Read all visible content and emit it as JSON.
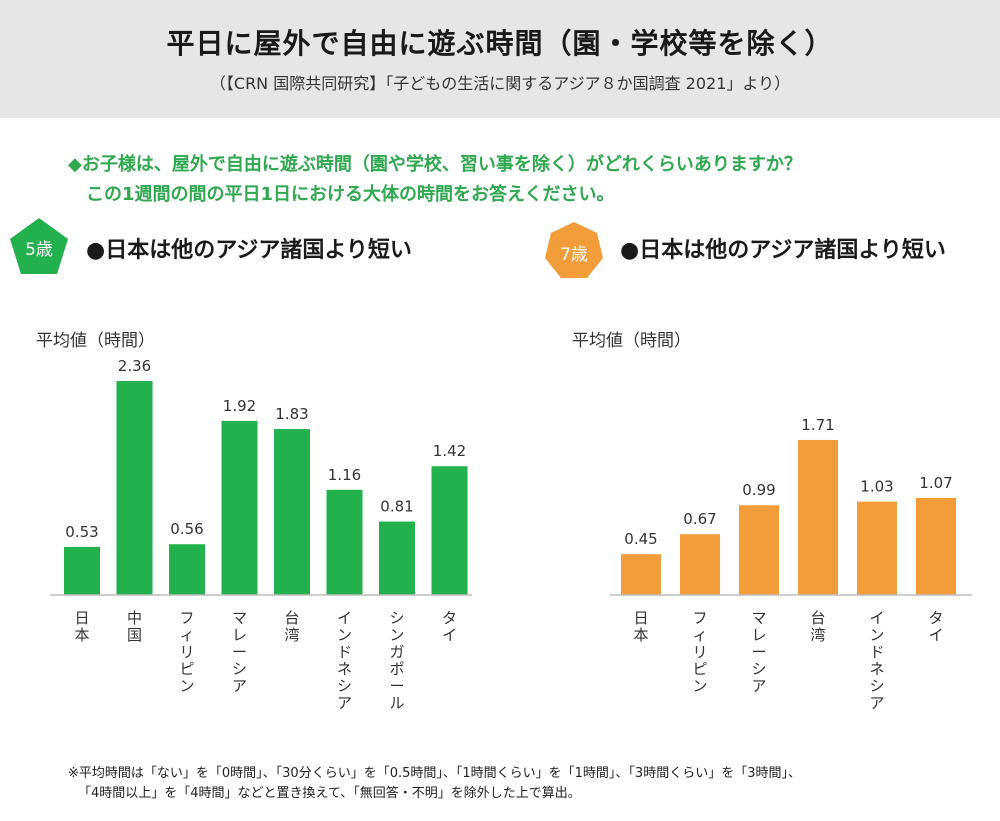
{
  "header": {
    "title": "平日に屋外で自由に遊ぶ時間（園・学校等を除く）",
    "subtitle": "（【CRN 国際共同研究】「子どもの生活に関するアジア８か国調査 2021」より）"
  },
  "question": {
    "line1": "◆お子様は、屋外で自由に遊ぶ時間（園や学校、習い事を除く）がどれくらいありますか？",
    "line2": "この1週間の間の平日1日における大体の時間をお答えください。"
  },
  "colors": {
    "green": "#22b14c",
    "orange": "#f39c3a",
    "question": "#2fa84f"
  },
  "chart_data": [
    {
      "type": "bar",
      "badge": "5歳",
      "headline": "●日本は他のアジア諸国より短い",
      "ylabel": "平均値（時間）",
      "categories": [
        "日本",
        "中国",
        "フィリピン",
        "マレーシア",
        "台湾",
        "インドネシア",
        "シンガポール",
        "タイ"
      ],
      "values": [
        0.53,
        2.36,
        0.56,
        1.92,
        1.83,
        1.16,
        0.81,
        1.42
      ],
      "value_labels": [
        "0.53",
        "2.36",
        "0.56",
        "1.92",
        "1.83",
        "1.16",
        "0.81",
        "1.42"
      ],
      "color": "#22b14c",
      "ylim": [
        0,
        2.36
      ]
    },
    {
      "type": "bar",
      "badge": "7歳",
      "headline": "●日本は他のアジア諸国より短い",
      "ylabel": "平均値（時間）",
      "categories": [
        "日本",
        "フィリピン",
        "マレーシア",
        "台湾",
        "インドネシア",
        "タイ"
      ],
      "values": [
        0.45,
        0.67,
        0.99,
        1.71,
        1.03,
        1.07
      ],
      "value_labels": [
        "0.45",
        "0.67",
        "0.99",
        "1.71",
        "1.03",
        "1.07"
      ],
      "color": "#f39c3a",
      "ylim": [
        0,
        2.36
      ]
    }
  ],
  "footnote": {
    "line1": "※平均時間は「ない」を「0時間」、「30分くらい」を「0.5時間」、「1時間くらい」を「1時間」、「3時間くらい」を「3時間」、",
    "line2": "「4時間以上」を「4時間」などと置き換えて、「無回答・不明」を除外した上で算出。"
  }
}
